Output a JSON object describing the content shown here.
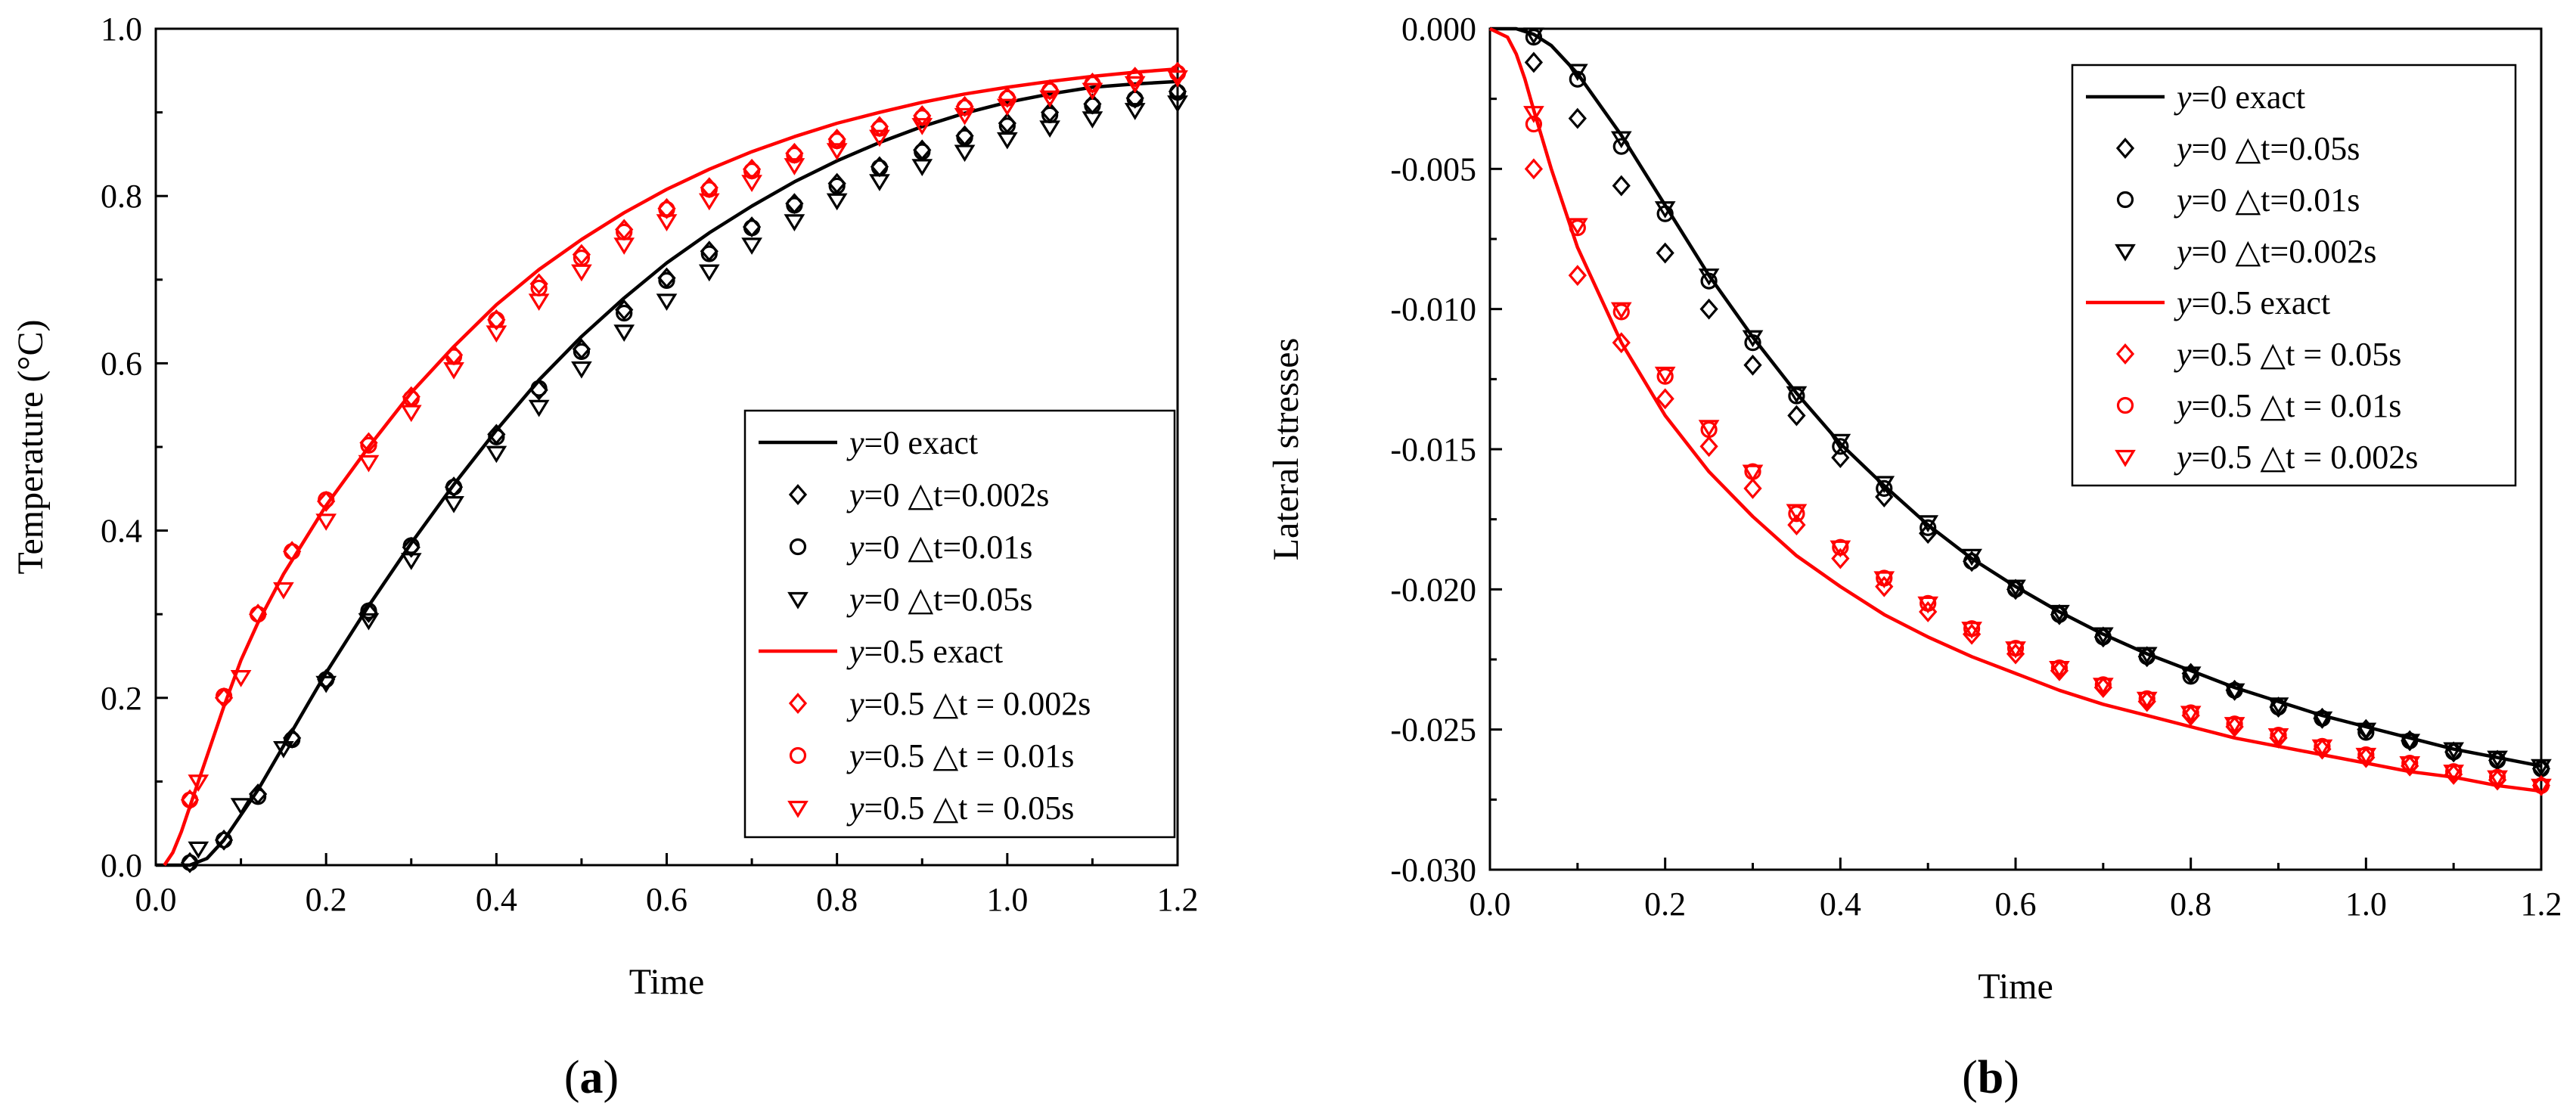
{
  "colors": {
    "black": "#000000",
    "red": "#ff0000"
  },
  "chart_data": [
    {
      "type": "line",
      "panel": "(a)",
      "caption_letter": "a",
      "xlabel": "Time",
      "ylabel": "Temperature (°C)",
      "xlim": [
        0,
        1.2
      ],
      "ylim": [
        0,
        1.0
      ],
      "xticks": [
        "0.0",
        "0.2",
        "0.4",
        "0.6",
        "0.8",
        "1.0",
        "1.2"
      ],
      "yticks": [
        "0.0",
        "0.2",
        "0.4",
        "0.6",
        "0.8",
        "1.0"
      ],
      "legend_position": "bottom-right",
      "series": [
        {
          "legend_y": "y",
          "legend_rest": "=0    exact",
          "color": "#000000",
          "marker": "line",
          "x": [
            0.0,
            0.02,
            0.04,
            0.06,
            0.08,
            0.1,
            0.12,
            0.14,
            0.16,
            0.18,
            0.2,
            0.25,
            0.3,
            0.35,
            0.4,
            0.45,
            0.5,
            0.55,
            0.6,
            0.65,
            0.7,
            0.75,
            0.8,
            0.85,
            0.9,
            0.95,
            1.0,
            1.05,
            1.1,
            1.15,
            1.2
          ],
          "y": [
            0.0,
            0.0,
            0.0,
            0.008,
            0.03,
            0.06,
            0.09,
            0.125,
            0.16,
            0.195,
            0.23,
            0.31,
            0.385,
            0.455,
            0.52,
            0.58,
            0.632,
            0.678,
            0.72,
            0.756,
            0.788,
            0.817,
            0.842,
            0.864,
            0.883,
            0.899,
            0.912,
            0.922,
            0.93,
            0.934,
            0.937
          ]
        },
        {
          "legend_y": "y",
          "legend_rest": "=0    △t=0.002s",
          "color": "#000000",
          "marker": "diamond",
          "x": [
            0.04,
            0.08,
            0.12,
            0.16,
            0.2,
            0.25,
            0.3,
            0.35,
            0.4,
            0.45,
            0.5,
            0.55,
            0.6,
            0.65,
            0.7,
            0.75,
            0.8,
            0.85,
            0.9,
            0.95,
            1.0,
            1.05,
            1.1,
            1.15,
            1.2
          ],
          "y": [
            0.003,
            0.03,
            0.085,
            0.152,
            0.222,
            0.302,
            0.38,
            0.452,
            0.515,
            0.568,
            0.617,
            0.664,
            0.702,
            0.734,
            0.763,
            0.791,
            0.815,
            0.835,
            0.855,
            0.872,
            0.887,
            0.9,
            0.91,
            0.917,
            0.925
          ]
        },
        {
          "legend_y": "y",
          "legend_rest": "=0    △t=0.01s",
          "color": "#000000",
          "marker": "circle",
          "x": [
            0.04,
            0.08,
            0.12,
            0.16,
            0.2,
            0.25,
            0.3,
            0.35,
            0.4,
            0.45,
            0.5,
            0.55,
            0.6,
            0.65,
            0.7,
            0.75,
            0.8,
            0.85,
            0.9,
            0.95,
            1.0,
            1.05,
            1.1,
            1.15,
            1.2
          ],
          "y": [
            0.003,
            0.03,
            0.082,
            0.15,
            0.222,
            0.304,
            0.382,
            0.452,
            0.512,
            0.57,
            0.614,
            0.66,
            0.699,
            0.731,
            0.762,
            0.789,
            0.812,
            0.834,
            0.853,
            0.87,
            0.884,
            0.897,
            0.908,
            0.916,
            0.924
          ]
        },
        {
          "legend_y": "y",
          "legend_rest": "=0    △t=0.05s",
          "color": "#000000",
          "marker": "triangle",
          "x": [
            0.05,
            0.1,
            0.15,
            0.2,
            0.25,
            0.3,
            0.35,
            0.4,
            0.45,
            0.5,
            0.55,
            0.6,
            0.65,
            0.7,
            0.75,
            0.8,
            0.85,
            0.9,
            0.95,
            1.0,
            1.05,
            1.1,
            1.15,
            1.2
          ],
          "y": [
            0.02,
            0.072,
            0.14,
            0.218,
            0.293,
            0.365,
            0.433,
            0.493,
            0.548,
            0.594,
            0.638,
            0.675,
            0.71,
            0.742,
            0.77,
            0.795,
            0.818,
            0.836,
            0.853,
            0.868,
            0.882,
            0.893,
            0.903,
            0.912
          ]
        },
        {
          "legend_y": "y",
          "legend_rest": "=0.5 exact",
          "color": "#ff0000",
          "marker": "line",
          "x": [
            0.01,
            0.02,
            0.03,
            0.04,
            0.05,
            0.06,
            0.08,
            0.1,
            0.12,
            0.15,
            0.2,
            0.25,
            0.3,
            0.35,
            0.4,
            0.45,
            0.5,
            0.55,
            0.6,
            0.65,
            0.7,
            0.75,
            0.8,
            0.85,
            0.9,
            0.95,
            1.0,
            1.05,
            1.1,
            1.15,
            1.2
          ],
          "y": [
            0.0,
            0.015,
            0.04,
            0.07,
            0.1,
            0.13,
            0.19,
            0.245,
            0.29,
            0.348,
            0.43,
            0.5,
            0.565,
            0.62,
            0.67,
            0.712,
            0.748,
            0.78,
            0.808,
            0.832,
            0.853,
            0.871,
            0.887,
            0.9,
            0.912,
            0.922,
            0.93,
            0.937,
            0.943,
            0.948,
            0.952
          ]
        },
        {
          "legend_y": "y",
          "legend_rest": "=0.5 △t = 0.002s",
          "color": "#ff0000",
          "marker": "diamond",
          "x": [
            0.04,
            0.08,
            0.12,
            0.16,
            0.2,
            0.25,
            0.3,
            0.35,
            0.4,
            0.45,
            0.5,
            0.55,
            0.6,
            0.65,
            0.7,
            0.75,
            0.8,
            0.85,
            0.9,
            0.95,
            1.0,
            1.05,
            1.1,
            1.15,
            1.2
          ],
          "y": [
            0.078,
            0.2,
            0.3,
            0.375,
            0.435,
            0.505,
            0.56,
            0.61,
            0.652,
            0.695,
            0.73,
            0.76,
            0.785,
            0.81,
            0.832,
            0.851,
            0.868,
            0.883,
            0.896,
            0.907,
            0.918,
            0.927,
            0.935,
            0.942,
            0.948
          ]
        },
        {
          "legend_y": "y",
          "legend_rest": "=0.5 △t = 0.01s",
          "color": "#ff0000",
          "marker": "circle",
          "x": [
            0.04,
            0.08,
            0.12,
            0.16,
            0.2,
            0.25,
            0.3,
            0.35,
            0.4,
            0.45,
            0.5,
            0.55,
            0.6,
            0.65,
            0.7,
            0.75,
            0.8,
            0.85,
            0.9,
            0.95,
            1.0,
            1.05,
            1.1,
            1.15,
            1.2
          ],
          "y": [
            0.078,
            0.202,
            0.3,
            0.375,
            0.437,
            0.502,
            0.558,
            0.608,
            0.652,
            0.69,
            0.726,
            0.757,
            0.784,
            0.808,
            0.83,
            0.849,
            0.866,
            0.881,
            0.894,
            0.906,
            0.917,
            0.926,
            0.934,
            0.941,
            0.947
          ]
        },
        {
          "legend_y": "y",
          "legend_rest": "=0.5 △t = 0.05s",
          "color": "#ff0000",
          "marker": "triangle",
          "x": [
            0.05,
            0.1,
            0.15,
            0.2,
            0.25,
            0.3,
            0.35,
            0.4,
            0.45,
            0.5,
            0.55,
            0.6,
            0.65,
            0.7,
            0.75,
            0.8,
            0.85,
            0.9,
            0.95,
            1.0,
            1.05,
            1.1,
            1.15,
            1.2
          ],
          "y": [
            0.1,
            0.225,
            0.33,
            0.412,
            0.482,
            0.542,
            0.593,
            0.637,
            0.675,
            0.71,
            0.742,
            0.77,
            0.795,
            0.817,
            0.837,
            0.855,
            0.871,
            0.885,
            0.897,
            0.908,
            0.918,
            0.927,
            0.935,
            0.942
          ]
        }
      ]
    },
    {
      "type": "line",
      "panel": "(b)",
      "caption_letter": "b",
      "xlabel": "Time",
      "ylabel": "Lateral stresses",
      "xlim": [
        0,
        1.2
      ],
      "ylim": [
        -0.03,
        0.0
      ],
      "xticks": [
        "0.0",
        "0.2",
        "0.4",
        "0.6",
        "0.8",
        "1.0",
        "1.2"
      ],
      "yticks": [
        "0.000",
        "-0.005",
        "-0.010",
        "-0.015",
        "-0.020",
        "-0.025",
        "-0.030"
      ],
      "legend_position": "top-right",
      "series": [
        {
          "legend_y": "y",
          "legend_rest": "=0    exact",
          "color": "#000000",
          "marker": "line",
          "x": [
            0.0,
            0.03,
            0.05,
            0.07,
            0.1,
            0.15,
            0.2,
            0.25,
            0.3,
            0.35,
            0.4,
            0.45,
            0.5,
            0.55,
            0.6,
            0.65,
            0.7,
            0.75,
            0.8,
            0.85,
            0.9,
            0.95,
            1.0,
            1.05,
            1.1,
            1.15,
            1.2
          ],
          "y": [
            0.0,
            0.0,
            -0.0002,
            -0.0006,
            -0.0016,
            -0.0038,
            -0.0063,
            -0.0088,
            -0.011,
            -0.013,
            -0.0148,
            -0.0163,
            -0.0177,
            -0.0189,
            -0.0199,
            -0.0208,
            -0.0216,
            -0.0223,
            -0.0229,
            -0.0235,
            -0.024,
            -0.0245,
            -0.0249,
            -0.0253,
            -0.0257,
            -0.026,
            -0.0263
          ]
        },
        {
          "legend_y": "y",
          "legend_rest": "=0    △t=0.05s",
          "color": "#000000",
          "marker": "diamond",
          "x": [
            0.05,
            0.1,
            0.15,
            0.2,
            0.25,
            0.3,
            0.35,
            0.4,
            0.45,
            0.5,
            0.55,
            0.6,
            0.65,
            0.7,
            0.75,
            0.8,
            0.85,
            0.9,
            0.95,
            1.0,
            1.05,
            1.1,
            1.15,
            1.2
          ],
          "y": [
            -0.0012,
            -0.0032,
            -0.0056,
            -0.008,
            -0.01,
            -0.012,
            -0.0138,
            -0.0153,
            -0.0167,
            -0.018,
            -0.019,
            -0.02,
            -0.0209,
            -0.0217,
            -0.0224,
            -0.023,
            -0.0236,
            -0.0242,
            -0.0246,
            -0.025,
            -0.0254,
            -0.0258,
            -0.0261,
            -0.0264
          ]
        },
        {
          "legend_y": "y",
          "legend_rest": "=0    △t=0.01s",
          "color": "#000000",
          "marker": "circle",
          "x": [
            0.05,
            0.1,
            0.15,
            0.2,
            0.25,
            0.3,
            0.35,
            0.4,
            0.45,
            0.5,
            0.55,
            0.6,
            0.65,
            0.7,
            0.75,
            0.8,
            0.85,
            0.9,
            0.95,
            1.0,
            1.05,
            1.1,
            1.15,
            1.2
          ],
          "y": [
            -0.0003,
            -0.0018,
            -0.0042,
            -0.0066,
            -0.009,
            -0.0112,
            -0.0131,
            -0.0149,
            -0.0164,
            -0.0178,
            -0.019,
            -0.02,
            -0.0209,
            -0.0217,
            -0.0224,
            -0.0231,
            -0.0236,
            -0.0242,
            -0.0246,
            -0.0251,
            -0.0254,
            -0.0258,
            -0.0261,
            -0.0264
          ]
        },
        {
          "legend_y": "y",
          "legend_rest": "=0    △t=0.002s",
          "color": "#000000",
          "marker": "triangle",
          "x": [
            0.05,
            0.1,
            0.15,
            0.2,
            0.25,
            0.3,
            0.35,
            0.4,
            0.45,
            0.5,
            0.55,
            0.6,
            0.65,
            0.7,
            0.75,
            0.8,
            0.85,
            0.9,
            0.95,
            1.0,
            1.05,
            1.1,
            1.15,
            1.2
          ],
          "y": [
            -0.0002,
            -0.0015,
            -0.0039,
            -0.0064,
            -0.0088,
            -0.011,
            -0.013,
            -0.0147,
            -0.0162,
            -0.0176,
            -0.0188,
            -0.0199,
            -0.0208,
            -0.0216,
            -0.0223,
            -0.023,
            -0.0236,
            -0.0241,
            -0.0246,
            -0.025,
            -0.0254,
            -0.0257,
            -0.026,
            -0.0263
          ]
        },
        {
          "legend_y": "y",
          "legend_rest": "=0.5 exact",
          "color": "#ff0000",
          "marker": "line",
          "x": [
            0.0,
            0.02,
            0.03,
            0.04,
            0.05,
            0.07,
            0.1,
            0.15,
            0.2,
            0.25,
            0.3,
            0.35,
            0.4,
            0.45,
            0.5,
            0.55,
            0.6,
            0.65,
            0.7,
            0.75,
            0.8,
            0.85,
            0.9,
            0.95,
            1.0,
            1.05,
            1.1,
            1.15,
            1.2
          ],
          "y": [
            0.0,
            -0.0003,
            -0.0009,
            -0.0018,
            -0.0029,
            -0.005,
            -0.0078,
            -0.0112,
            -0.0138,
            -0.0158,
            -0.0174,
            -0.0188,
            -0.0199,
            -0.0209,
            -0.0217,
            -0.0224,
            -0.023,
            -0.0236,
            -0.0241,
            -0.0245,
            -0.0249,
            -0.0253,
            -0.0256,
            -0.0259,
            -0.0262,
            -0.0265,
            -0.0267,
            -0.027,
            -0.0272
          ]
        },
        {
          "legend_y": "y",
          "legend_rest": "=0.5 △t = 0.05s",
          "color": "#ff0000",
          "marker": "diamond",
          "x": [
            0.05,
            0.1,
            0.15,
            0.2,
            0.25,
            0.3,
            0.35,
            0.4,
            0.45,
            0.5,
            0.55,
            0.6,
            0.65,
            0.7,
            0.75,
            0.8,
            0.85,
            0.9,
            0.95,
            1.0,
            1.05,
            1.1,
            1.15,
            1.2
          ],
          "y": [
            -0.005,
            -0.0088,
            -0.0112,
            -0.0132,
            -0.0149,
            -0.0164,
            -0.0177,
            -0.0189,
            -0.0199,
            -0.0208,
            -0.0216,
            -0.0223,
            -0.0229,
            -0.0235,
            -0.024,
            -0.0245,
            -0.0249,
            -0.0253,
            -0.0257,
            -0.026,
            -0.0263,
            -0.0266,
            -0.0268,
            -0.027
          ]
        },
        {
          "legend_y": "y",
          "legend_rest": "=0.5 △t = 0.01s",
          "color": "#ff0000",
          "marker": "circle",
          "x": [
            0.05,
            0.1,
            0.15,
            0.2,
            0.25,
            0.3,
            0.35,
            0.4,
            0.45,
            0.5,
            0.55,
            0.6,
            0.65,
            0.7,
            0.75,
            0.8,
            0.85,
            0.9,
            0.95,
            1.0,
            1.05,
            1.1,
            1.15,
            1.2
          ],
          "y": [
            -0.0034,
            -0.0071,
            -0.0101,
            -0.0124,
            -0.0143,
            -0.0158,
            -0.0173,
            -0.0185,
            -0.0196,
            -0.0205,
            -0.0214,
            -0.0221,
            -0.0228,
            -0.0234,
            -0.0239,
            -0.0244,
            -0.0248,
            -0.0252,
            -0.0256,
            -0.0259,
            -0.0262,
            -0.0265,
            -0.0267,
            -0.027
          ]
        },
        {
          "legend_y": "y",
          "legend_rest": "=0.5 △t = 0.002s",
          "color": "#ff0000",
          "marker": "triangle",
          "x": [
            0.05,
            0.1,
            0.15,
            0.2,
            0.25,
            0.3,
            0.35,
            0.4,
            0.45,
            0.5,
            0.55,
            0.6,
            0.65,
            0.7,
            0.75,
            0.8,
            0.85,
            0.9,
            0.95,
            1.0,
            1.05,
            1.1,
            1.15,
            1.2
          ],
          "y": [
            -0.003,
            -0.007,
            -0.01,
            -0.0123,
            -0.0142,
            -0.0158,
            -0.0172,
            -0.0185,
            -0.0196,
            -0.0205,
            -0.0214,
            -0.0221,
            -0.0228,
            -0.0234,
            -0.0239,
            -0.0244,
            -0.0248,
            -0.0252,
            -0.0256,
            -0.0259,
            -0.0262,
            -0.0265,
            -0.0267,
            -0.027
          ]
        }
      ]
    }
  ]
}
